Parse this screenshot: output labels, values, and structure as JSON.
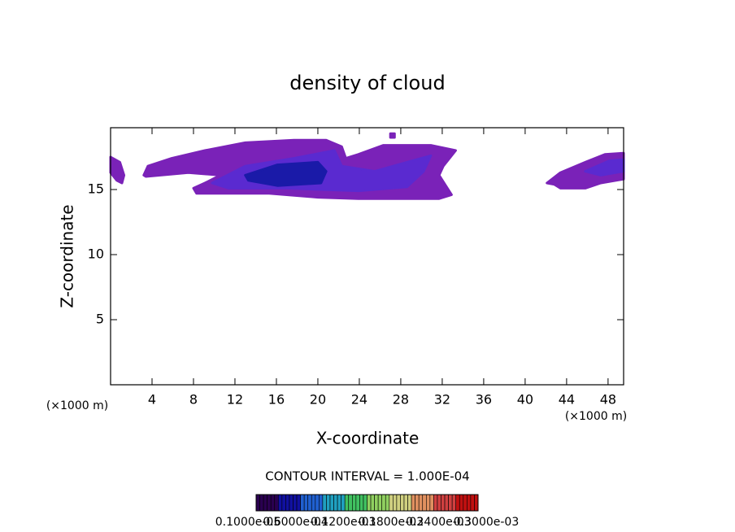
{
  "chart_data": {
    "type": "contour",
    "title": "density of cloud",
    "x_label": "X-coordinate",
    "y_label": "Z-coordinate",
    "x_unit_left": "(×1000 m)",
    "x_unit_right": "(×1000 m)",
    "annotation": "CONTOUR INTERVAL = 1.000E-04",
    "xlim": [
      0,
      49.5
    ],
    "ylim": [
      0,
      19.75
    ],
    "xticks": [
      4,
      8,
      12,
      16,
      20,
      24,
      28,
      32,
      36,
      40,
      44,
      48
    ],
    "yticks": [
      5,
      10,
      15
    ],
    "regions": [
      {
        "color": "#7a22b8",
        "x": [
          3.2,
          3.6,
          5.9,
          9.1,
          13.0,
          17.7,
          20.8,
          22.3,
          22.7,
          23.9,
          26.3,
          30.9,
          33.3,
          32.1,
          31.7,
          32.5,
          32.9,
          31.7,
          26.3,
          23.9,
          20.0,
          15.3,
          8.3,
          8.0,
          9.1,
          10.6,
          7.5,
          3.4
        ],
        "y": [
          16.1,
          16.8,
          17.4,
          18.0,
          18.6,
          18.8,
          18.8,
          18.3,
          17.4,
          17.7,
          18.4,
          18.4,
          18.0,
          16.8,
          16.1,
          15.1,
          14.6,
          14.3,
          14.3,
          14.3,
          14.4,
          14.7,
          14.7,
          15.1,
          15.5,
          16.1,
          16.3,
          16.0
        ]
      },
      {
        "color": "#7a22b8",
        "x": [
          0,
          0.9,
          1.3,
          1.1,
          0.6,
          0
        ],
        "y": [
          17.5,
          17.1,
          16.1,
          15.5,
          15.7,
          16.3
        ]
      },
      {
        "color": "#7a22b8",
        "x": [
          42.1,
          43.4,
          45.8,
          47.7,
          49.5,
          49.5,
          47.3,
          45.8,
          43.4,
          42.8
        ],
        "y": [
          15.5,
          16.3,
          17.1,
          17.7,
          17.8,
          15.8,
          15.5,
          15.1,
          15.1,
          15.4
        ]
      },
      {
        "color": "#7a22b8",
        "x": [
          27.0,
          27.4,
          27.4,
          27.0
        ],
        "y": [
          19.3,
          19.3,
          19.0,
          19.0
        ]
      },
      {
        "color": "#5a2ad0",
        "x": [
          9.8,
          13.0,
          17.7,
          21.6,
          22.3,
          25.5,
          28.6,
          30.9,
          30.2,
          28.6,
          23.9,
          16.9,
          11.4
        ],
        "y": [
          15.5,
          16.8,
          17.4,
          18.0,
          16.8,
          16.4,
          17.1,
          17.6,
          16.4,
          15.2,
          14.9,
          15.1,
          15.1
        ]
      },
      {
        "color": "#5a2ad0",
        "x": [
          45.8,
          48.1,
          49.5,
          49.5,
          47.3
        ],
        "y": [
          16.4,
          17.2,
          17.3,
          16.4,
          16.1
        ]
      },
      {
        "color": "#1a1aa8",
        "x": [
          13.0,
          16.1,
          20.0,
          20.8,
          20.3,
          16.1,
          13.3
        ],
        "y": [
          16.1,
          16.9,
          17.1,
          16.4,
          15.5,
          15.3,
          15.7
        ]
      }
    ],
    "colorbar": {
      "colors": [
        "#2a0050",
        "#1010a0",
        "#2060d0",
        "#20a0c0",
        "#40c060",
        "#90d060",
        "#d0d080",
        "#e09060",
        "#d04040",
        "#c01010"
      ],
      "labels": [
        "0.1000e-05",
        "0.6000e-04",
        "0.1200e-03",
        "0.1800e-03",
        "0.2400e-03",
        "0.3000e-03"
      ]
    }
  }
}
